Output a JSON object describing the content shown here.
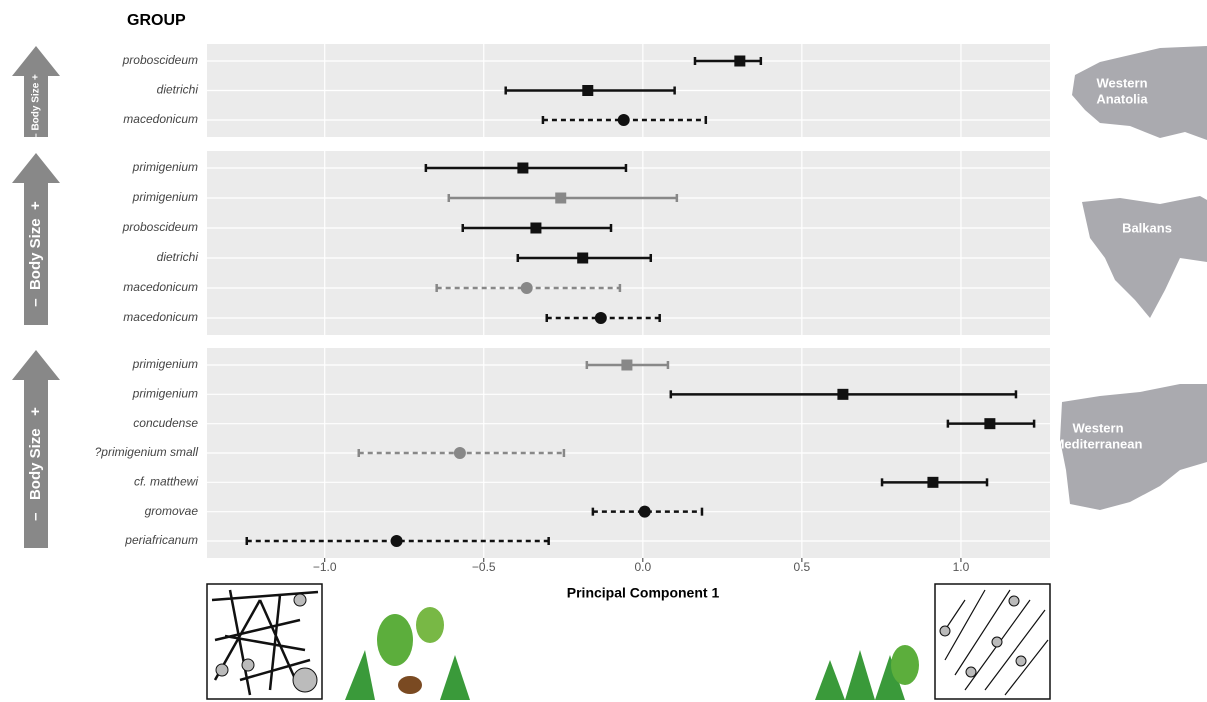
{
  "title": "GROUP",
  "x_axis": {
    "label": "Principal Component 1",
    "xlim": [
      -1.37,
      1.28
    ],
    "xticks": [
      {
        "value": -1,
        "label": "−1.0"
      },
      {
        "value": -0.5,
        "label": "−0.5"
      },
      {
        "value": 0,
        "label": "0.0"
      },
      0.5,
      {
        "value": 1,
        "label": "1.0"
      }
    ],
    "grid": true
  },
  "chart_data": [
    {
      "type": "errorbar",
      "region": [
        "Western",
        "Anatolia"
      ],
      "arrow_label": "– Body Size +",
      "categories": [
        "proboscideum",
        "dietrichi",
        "macedonicum"
      ],
      "values": [
        0.305,
        -0.173,
        -0.06
      ],
      "lower": [
        0.164,
        -0.431,
        -0.314
      ],
      "upper": [
        0.371,
        0.1,
        0.198
      ],
      "colors": [
        "#111111",
        "#111111",
        "#111111"
      ],
      "markers": [
        "square",
        "square",
        "circle"
      ],
      "dashed": [
        false,
        false,
        true
      ]
    },
    {
      "type": "errorbar",
      "region": [
        "Balkans"
      ],
      "arrow_label": "–  Body Size  +",
      "categories": [
        "primigenium",
        "primigenium",
        "proboscideum",
        "dietrichi",
        "macedonicum",
        "macedonicum"
      ],
      "values": [
        -0.377,
        -0.258,
        -0.336,
        -0.189,
        -0.365,
        -0.132
      ],
      "lower": [
        -0.682,
        -0.61,
        -0.566,
        -0.393,
        -0.648,
        -0.302
      ],
      "upper": [
        -0.053,
        0.107,
        -0.1,
        0.025,
        -0.072,
        0.053
      ],
      "colors": [
        "#111111",
        "#888888",
        "#111111",
        "#111111",
        "#888888",
        "#111111"
      ],
      "markers": [
        "square",
        "square",
        "square",
        "square",
        "circle",
        "circle"
      ],
      "dashed": [
        false,
        false,
        false,
        false,
        true,
        true
      ]
    },
    {
      "type": "errorbar",
      "region": [
        "Western",
        "Mediterranean"
      ],
      "arrow_label": "–   Body Size   +",
      "categories": [
        "primigenium",
        "primigenium",
        "concudense",
        "?primigenium small",
        "cf. matthewi",
        "gromovae",
        "periafricanum"
      ],
      "values": [
        -0.05,
        0.629,
        1.091,
        -0.575,
        0.912,
        0.006,
        -0.774
      ],
      "lower": [
        -0.176,
        0.088,
        0.959,
        -0.893,
        0.752,
        -0.157,
        -1.245
      ],
      "upper": [
        0.079,
        1.173,
        1.23,
        -0.248,
        1.082,
        0.186,
        -0.296
      ],
      "colors": [
        "#888888",
        "#111111",
        "#111111",
        "#888888",
        "#111111",
        "#111111",
        "#111111"
      ],
      "markers": [
        "square",
        "square",
        "square",
        "circle",
        "square",
        "circle",
        "circle"
      ],
      "dashed": [
        false,
        false,
        false,
        true,
        false,
        true,
        true
      ]
    }
  ]
}
